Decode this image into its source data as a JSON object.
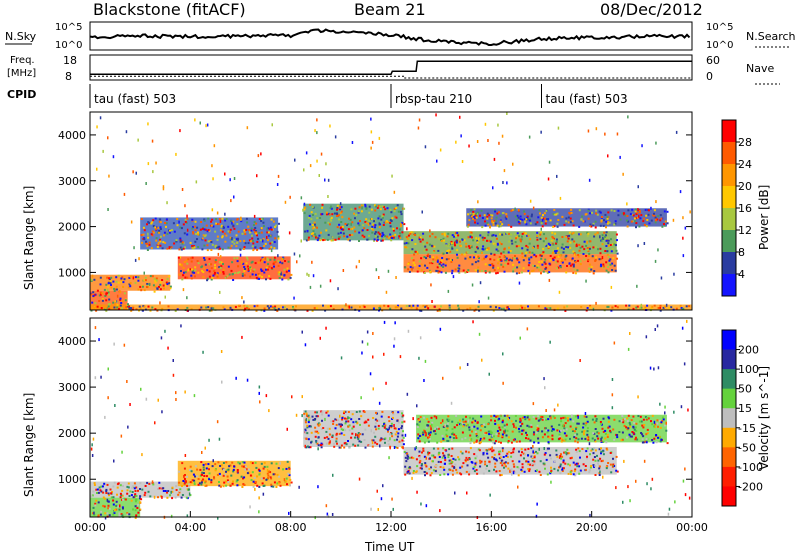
{
  "header": {
    "title": "Blackstone (fitACF)",
    "beam": "Beam 21",
    "date": "08/Dec/2012"
  },
  "top_panels": {
    "nsky_label": "N.Sky",
    "nsearch_label": "N.Search",
    "noise_ticks": [
      "10^5",
      "10^0"
    ],
    "freq_label_1": "Freq.",
    "freq_label_2": "[MHz]",
    "freq_ticks": [
      "18",
      "8"
    ],
    "nave_label": "Nave",
    "nave_ticks": [
      "60",
      "0"
    ],
    "cpid_label": "CPID",
    "cpid_segments": [
      {
        "label": "tau (fast) 503",
        "start_hour": 0
      },
      {
        "label": "rbsp-tau 210",
        "start_hour": 12
      },
      {
        "label": "tau (fast) 503",
        "start_hour": 18
      }
    ]
  },
  "power_scale": {
    "label": "Power [dB]",
    "ticks": [
      "28",
      "24",
      "20",
      "16",
      "12",
      "8",
      "4"
    ],
    "colors": [
      "#ff0000",
      "#ff5a00",
      "#ff9600",
      "#ffc800",
      "#a8c840",
      "#4b9b5a",
      "#2a3ca0",
      "#1414ff"
    ]
  },
  "velocity_scale": {
    "label": "Velocity [m s^-1]",
    "ticks": [
      "200",
      "100",
      "50",
      "15",
      "-15",
      "-50",
      "-100",
      "-200"
    ],
    "colors": [
      "#0000ff",
      "#2828a0",
      "#2e8c64",
      "#64d23c",
      "#bebebe",
      "#ffaa00",
      "#ff6400",
      "#ff1e00",
      "#ff0000"
    ]
  },
  "chart_data": [
    {
      "type": "heatmap",
      "panel": "power",
      "xlabel": "",
      "ylabel": "Slant Range [km]",
      "xlim": [
        0,
        24
      ],
      "ylim": [
        180,
        4500
      ],
      "yticks": [
        1000,
        2000,
        3000,
        4000
      ],
      "bands": [
        {
          "t0": 0.0,
          "t1": 3.2,
          "r0": 600,
          "r1": 950,
          "level": "strong",
          "color": "#ff7800"
        },
        {
          "t0": 0.0,
          "t1": 1.5,
          "r0": 180,
          "r1": 600,
          "level": "strong",
          "color": "#ff5000"
        },
        {
          "t0": 3.5,
          "t1": 8.0,
          "r0": 850,
          "r1": 1350,
          "level": "strong",
          "color": "#ff3c00"
        },
        {
          "t0": 2.0,
          "t1": 7.5,
          "r0": 1500,
          "r1": 2200,
          "level": "weak",
          "color": "#2a50b4"
        },
        {
          "t0": 8.5,
          "t1": 12.5,
          "r0": 1700,
          "r1": 2500,
          "level": "medium",
          "color": "#3c8c6e"
        },
        {
          "t0": 12.5,
          "t1": 21.0,
          "r0": 1000,
          "r1": 1400,
          "level": "strong",
          "color": "#ff6400"
        },
        {
          "t0": 12.5,
          "t1": 21.0,
          "r0": 1400,
          "r1": 1900,
          "level": "medium",
          "color": "#6ea03c"
        },
        {
          "t0": 15.0,
          "t1": 23.0,
          "r0": 2000,
          "r1": 2400,
          "level": "weak",
          "color": "#2a3ca0"
        },
        {
          "t0": 0.0,
          "t1": 24.0,
          "r0": 180,
          "r1": 300,
          "level": "medium",
          "color": "#ff9600"
        }
      ]
    },
    {
      "type": "heatmap",
      "panel": "velocity",
      "xlabel": "Time UT",
      "ylabel": "Slant Range [km]",
      "xlim": [
        0,
        24
      ],
      "ylim": [
        180,
        4500
      ],
      "yticks": [
        1000,
        2000,
        3000,
        4000
      ],
      "xticks": [
        "00:00",
        "04:00",
        "08:00",
        "12:00",
        "16:00",
        "20:00",
        "00:00"
      ],
      "bands": [
        {
          "t0": 0.0,
          "t1": 4.0,
          "r0": 600,
          "r1": 950,
          "velocity_class": "-15..15",
          "color": "#bebebe"
        },
        {
          "t0": 3.5,
          "t1": 8.0,
          "r0": 850,
          "r1": 1400,
          "velocity_class": "-50..-15",
          "color": "#ffaa00"
        },
        {
          "t0": 0.0,
          "t1": 2.0,
          "r0": 180,
          "r1": 600,
          "velocity_class": "15..50",
          "color": "#64d23c"
        },
        {
          "t0": 8.5,
          "t1": 12.5,
          "r0": 1700,
          "r1": 2500,
          "velocity_class": "-15..15",
          "color": "#bebebe"
        },
        {
          "t0": 12.5,
          "t1": 21.0,
          "r0": 1100,
          "r1": 1700,
          "velocity_class": "-15..15",
          "color": "#bebebe"
        },
        {
          "t0": 13.0,
          "t1": 23.0,
          "r0": 1800,
          "r1": 2400,
          "velocity_class": "15..50",
          "color": "#64d23c"
        }
      ]
    },
    {
      "type": "line",
      "panel": "noise",
      "x": [
        0,
        2,
        4,
        6,
        8,
        9,
        10,
        12,
        13,
        14,
        16,
        18,
        20,
        22,
        24
      ],
      "y_level": [
        0.55,
        0.5,
        0.52,
        0.5,
        0.48,
        0.3,
        0.35,
        0.45,
        0.6,
        0.7,
        0.78,
        0.6,
        0.55,
        0.52,
        0.5
      ]
    },
    {
      "type": "line",
      "panel": "frequency",
      "x": [
        0,
        10.5,
        12.0,
        12.05,
        13.0,
        13.05,
        24
      ],
      "y_mhz": [
        10.3,
        10.3,
        10.3,
        11.5,
        11.5,
        15.5,
        15.5
      ]
    }
  ]
}
